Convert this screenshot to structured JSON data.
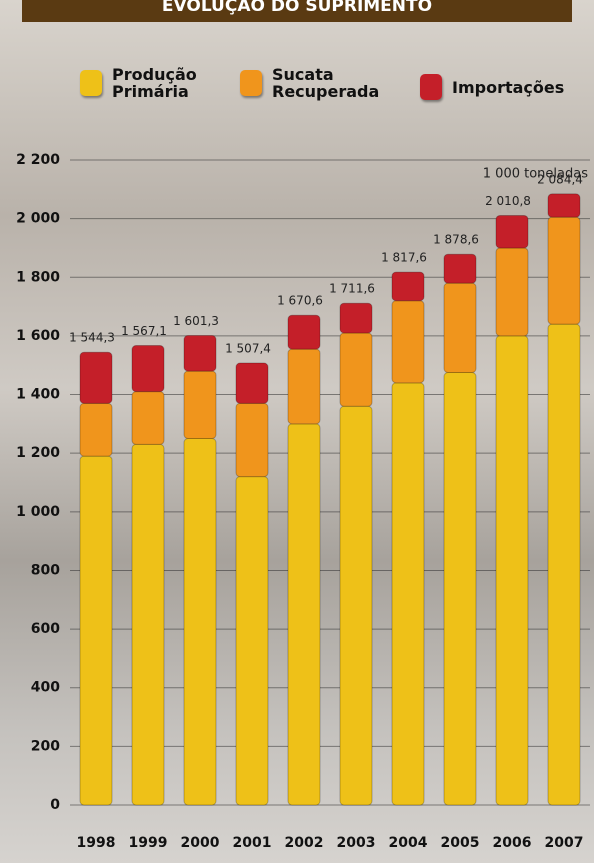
{
  "chart_data": {
    "type": "stacked_bar",
    "title": "EVOLUÇÃO DO SUPRIMENTO",
    "unit_label": "1 000 toneladas",
    "categories": [
      "1998",
      "1999",
      "2000",
      "2001",
      "2002",
      "2003",
      "2004",
      "2005",
      "2006",
      "2007"
    ],
    "series": [
      {
        "name": "Produção Primária",
        "color": "#eec118",
        "values": [
          1190,
          1230,
          1250,
          1120,
          1300,
          1360,
          1440,
          1475,
          1600,
          1640
        ]
      },
      {
        "name": "Sucata Recuperada",
        "color": "#f0951c",
        "values": [
          180,
          180,
          230,
          250,
          255,
          250,
          280,
          305,
          300,
          365
        ]
      },
      {
        "name": "Importações",
        "color": "#c41f29",
        "values": [
          174.3,
          157.1,
          121.3,
          137.4,
          115.6,
          101.6,
          97.6,
          98.6,
          110.8,
          79.4
        ]
      }
    ],
    "totals": {
      "values": [
        1544.3,
        1567.1,
        1601.3,
        1507.4,
        1670.6,
        1711.6,
        1817.6,
        1878.6,
        2010.8,
        2084.4
      ],
      "value_labels": [
        "1 544,3",
        "1 567,1",
        "1 601,3",
        "1 507,4",
        "1 670,6",
        "1 711,6",
        "1 817,6",
        "1 878,6",
        "2 010,8",
        "2 084,4"
      ]
    },
    "ylim": [
      0,
      2200
    ],
    "yticks": [
      0,
      200,
      400,
      600,
      800,
      {
        "value": 1000,
        "label": "1 000"
      },
      {
        "value": 1200,
        "label": "1 200"
      },
      {
        "value": 1400,
        "label": "1 400"
      },
      {
        "value": 1600,
        "label": "1 600"
      },
      {
        "value": 1800,
        "label": "1 800"
      },
      {
        "value": 2000,
        "label": "2 000"
      },
      {
        "value": 2200,
        "label": "2 200"
      }
    ],
    "grid": true
  }
}
